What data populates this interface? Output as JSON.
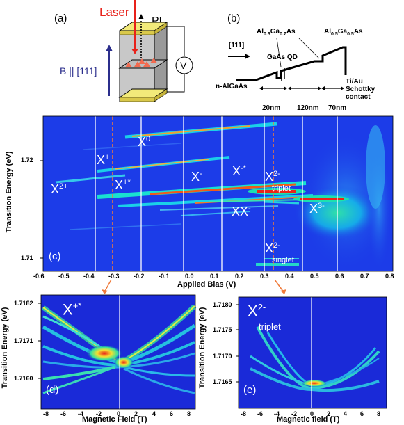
{
  "panels": {
    "a": {
      "letter": "(a)",
      "laser": "Laser",
      "pl": "PL",
      "field": "B || [111]",
      "voltmeter": "V",
      "colors": {
        "laser": "#e8211a",
        "field": "#2b2e8c",
        "dots": "#f26a4f",
        "gold": "#f2ea7a"
      }
    },
    "b": {
      "letter": "(b)",
      "direction": "[111]",
      "barrier_left": "Al",
      "barrier_left_sub1": "0.3",
      "barrier_left_ga": "Ga",
      "barrier_left_sub2": "0.7",
      "barrier_left_as": "As",
      "barrier_right": "Al",
      "barrier_right_sub1": "0.5",
      "barrier_right_ga": "Ga",
      "barrier_right_sub2": "0.5",
      "barrier_right_as": "As",
      "qd": "GaAs QD",
      "substrate": "n-AlGaAs",
      "contact_1": "Ti/Au",
      "contact_2": "Schottky",
      "contact_3": "contact",
      "dim_1": "20nm",
      "dim_2": "120nm",
      "dim_3": "70nm"
    },
    "c": {
      "letter": "(c)",
      "xlabel": "Applied Bias (V)",
      "ylabel": "Transition Energy (eV)",
      "xticks": [
        "-0.6",
        "-0.5",
        "-0.4",
        "-0.3",
        "-0.2",
        "-0.1",
        "0.0",
        "0.1",
        "0.2",
        "0.3",
        "0.4",
        "0.5",
        "0.6",
        "0.7",
        "0.8"
      ],
      "yticks": [
        "1.72",
        "1.71"
      ],
      "labels": {
        "x0": "X",
        "x0_sup": "0",
        "xp": "X",
        "xp_sup": "+",
        "xps": "X",
        "xps_sup": "+*",
        "x2p": "X",
        "x2p_sup": "2+",
        "xm": "X",
        "xm_sup": "-",
        "xms": "X",
        "xms_sup": "-*",
        "xxm": "XX",
        "xxm_sup": "-",
        "x2mt": "X",
        "x2mt_sup": "2-",
        "x2mt_sub": "triplet",
        "x3m": "X",
        "x3m_sup": "3-",
        "x2ms": "X",
        "x2ms_sup": "2-",
        "x2ms_sub": "singlet"
      }
    },
    "d": {
      "letter": "(d)",
      "xlabel": "Magnetic Field (T)",
      "ylabel": "Transition Energy (eV)",
      "xticks": [
        "-8",
        "-6",
        "-4",
        "-2",
        "0",
        "2",
        "4",
        "6",
        "8"
      ],
      "yticks": [
        "1.7182",
        "1.7171",
        "1.7160"
      ],
      "tag": "X",
      "tag_sup": "+*"
    },
    "e": {
      "letter": "(e)",
      "xlabel": "Magnetic field (T)",
      "ylabel": "Transition Energy (eV)",
      "xticks": [
        "-8",
        "-6",
        "-4",
        "-2",
        "0",
        "2",
        "4",
        "6",
        "8"
      ],
      "yticks": [
        "1.7180",
        "1.7175",
        "1.7170",
        "1.7165"
      ],
      "tag": "X",
      "tag_sup": "2-",
      "tag_sub": "triplet"
    }
  },
  "colors": {
    "map_bg": "#1c3ce8",
    "arrow": "#f07a3a"
  }
}
